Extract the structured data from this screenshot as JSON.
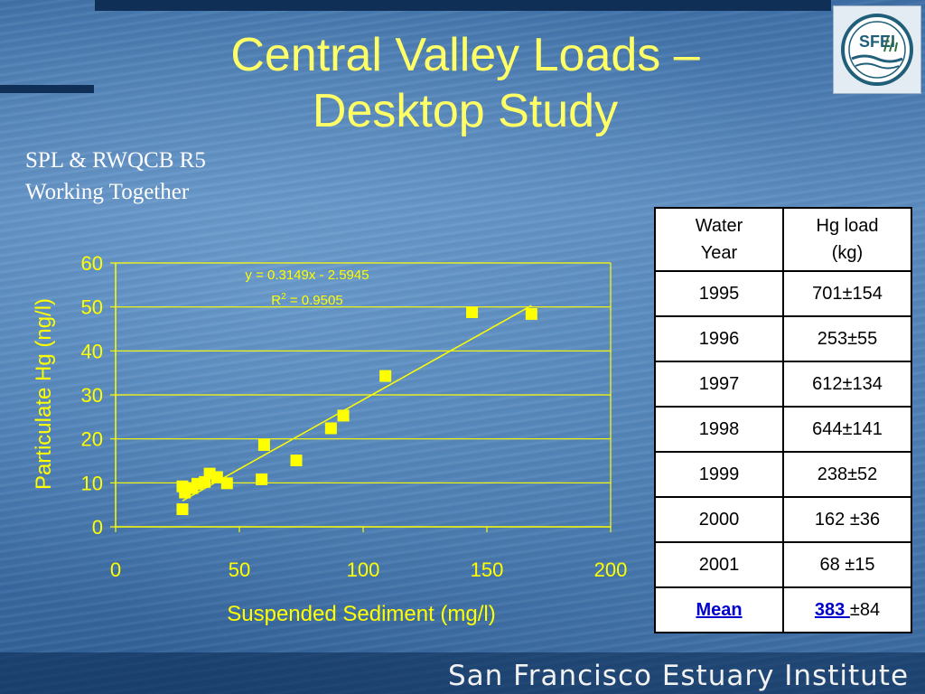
{
  "slide": {
    "title_line1": "Central Valley Loads –",
    "title_line2": "Desktop Study",
    "subtitle_line1": "SPL & RWQCB R5",
    "subtitle_line2": "Working Together",
    "footer": "San Francisco Estuary Institute",
    "logo_text": "SFEI",
    "colors": {
      "title": "#ffff66",
      "accent": "#ffff00",
      "background": "#4a7bb2"
    }
  },
  "chart_data": {
    "type": "scatter",
    "xlabel": "Suspended Sediment (mg/l)",
    "ylabel": "Particulate Hg (ng/l)",
    "xlim": [
      0,
      200
    ],
    "ylim": [
      0,
      60
    ],
    "xticks": [
      0,
      50,
      100,
      150,
      200
    ],
    "yticks": [
      0,
      10,
      20,
      30,
      40,
      50,
      60
    ],
    "grid": "horizontal",
    "equation": "y = 0.3149x - 2.5945",
    "r2_label": "R",
    "r2_sup": "2",
    "r2_value": " = 0.9505",
    "trendline": {
      "slope": 0.3149,
      "intercept": -2.5945,
      "x_range": [
        27,
        168
      ]
    },
    "points": [
      {
        "x": 27,
        "y": 9.2
      },
      {
        "x": 27,
        "y": 4.0
      },
      {
        "x": 28,
        "y": 7.8
      },
      {
        "x": 31,
        "y": 8.8
      },
      {
        "x": 33,
        "y": 9.8
      },
      {
        "x": 36,
        "y": 10.2
      },
      {
        "x": 38,
        "y": 12.1
      },
      {
        "x": 41,
        "y": 11.3
      },
      {
        "x": 45,
        "y": 9.9
      },
      {
        "x": 59,
        "y": 10.8
      },
      {
        "x": 60,
        "y": 18.6
      },
      {
        "x": 73,
        "y": 15.1
      },
      {
        "x": 87,
        "y": 22.4
      },
      {
        "x": 92,
        "y": 25.3
      },
      {
        "x": 109,
        "y": 34.3
      },
      {
        "x": 144,
        "y": 48.8
      },
      {
        "x": 168,
        "y": 48.4
      }
    ]
  },
  "table": {
    "headers": [
      {
        "line1": "Water",
        "line2": "Year"
      },
      {
        "line1": "Hg load",
        "line2": "(kg)"
      }
    ],
    "rows": [
      {
        "year": "1995",
        "load": "701±154"
      },
      {
        "year": "1996",
        "load": "253±55"
      },
      {
        "year": "1997",
        "load": "612±134"
      },
      {
        "year": "1998",
        "load": "644±141"
      },
      {
        "year": "1999",
        "load": "238±52"
      },
      {
        "year": "2000",
        "load": "162 ±36"
      },
      {
        "year": "2001",
        "load": "68 ±15"
      }
    ],
    "mean_label": "Mean",
    "mean_value": "383 ",
    "mean_pm": "±84"
  }
}
